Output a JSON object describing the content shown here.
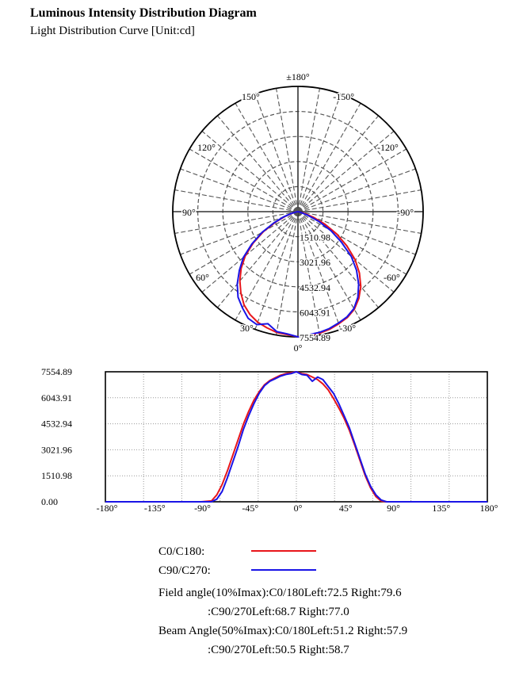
{
  "header": {
    "title": "Luminous Intensity Distribution Diagram",
    "subtitle": "Light Distribution Curve [Unit:cd]"
  },
  "chart_data": [
    {
      "type": "polar",
      "units": "cd",
      "angle_labels": [
        "±180°",
        "150°",
        "120°",
        "90°",
        "60°",
        "30°",
        "0°",
        "-30°",
        "-60°",
        "-90°",
        "-120°",
        "-150°"
      ],
      "ring_labels": [
        "1510.98",
        "3021.96",
        "4532.94",
        "6043.91",
        "7554.89"
      ],
      "rmax": 7554.89,
      "series": [
        {
          "name": "C0/C180",
          "color": "#e8151a",
          "x": [
            -90,
            -80,
            -75,
            -70,
            -65,
            -60,
            -55,
            -50,
            -45,
            -40,
            -35,
            -30,
            -25,
            -20,
            -15,
            -10,
            -5,
            0,
            5,
            10,
            15,
            20,
            25,
            30,
            35,
            40,
            45,
            50,
            55,
            60,
            65,
            70,
            75,
            80,
            85,
            90
          ],
          "y": [
            0,
            50,
            400,
            1000,
            1800,
            2700,
            3600,
            4500,
            5250,
            5900,
            6400,
            6800,
            7050,
            7200,
            7350,
            7450,
            7500,
            7550,
            7450,
            7400,
            7250,
            7100,
            6850,
            6500,
            6000,
            5450,
            4850,
            4150,
            3300,
            2400,
            1500,
            800,
            300,
            40,
            0,
            0
          ]
        },
        {
          "name": "C90/C270",
          "color": "#1a14e6",
          "x": [
            -90,
            -85,
            -80,
            -75,
            -70,
            -65,
            -60,
            -55,
            -50,
            -45,
            -40,
            -35,
            -30,
            -25,
            -20,
            -15,
            -10,
            -5,
            0,
            5,
            10,
            15,
            20,
            25,
            30,
            35,
            40,
            45,
            50,
            55,
            60,
            65,
            70,
            75,
            80,
            85,
            90
          ],
          "y": [
            0,
            0,
            0,
            150,
            600,
            1400,
            2300,
            3200,
            4200,
            5000,
            5700,
            6300,
            6750,
            7000,
            7150,
            7300,
            7400,
            7450,
            7554,
            7400,
            7350,
            7000,
            7250,
            7100,
            6700,
            6300,
            5700,
            5000,
            4300,
            3400,
            2500,
            1600,
            900,
            400,
            100,
            0,
            0
          ]
        }
      ]
    },
    {
      "type": "line",
      "xlim": [
        -180,
        180
      ],
      "ylim": [
        0,
        7554.89
      ],
      "x_ticks": [
        "-180°",
        "-135°",
        "-90°",
        "-45°",
        "0°",
        "45°",
        "90°",
        "135°",
        "180°"
      ],
      "y_ticks": [
        "0.00",
        "1510.98",
        "3021.96",
        "4532.94",
        "6043.91",
        "7554.89"
      ],
      "grid": true
    }
  ],
  "legend": {
    "c0_label": "C0/C180:",
    "c0_color": "#e8151a",
    "c90_label": "C90/C270:",
    "c90_color": "#1a14e6"
  },
  "angles": {
    "field_line1": "Field angle(10%Imax):C0/180Left:72.5 Right:79.6",
    "field_line2": ":C90/270Left:68.7 Right:77.0",
    "beam_line1": "Beam Angle(50%Imax):C0/180Left:51.2 Right:57.9",
    "beam_line2": ":C90/270Left:50.5 Right:58.7"
  }
}
